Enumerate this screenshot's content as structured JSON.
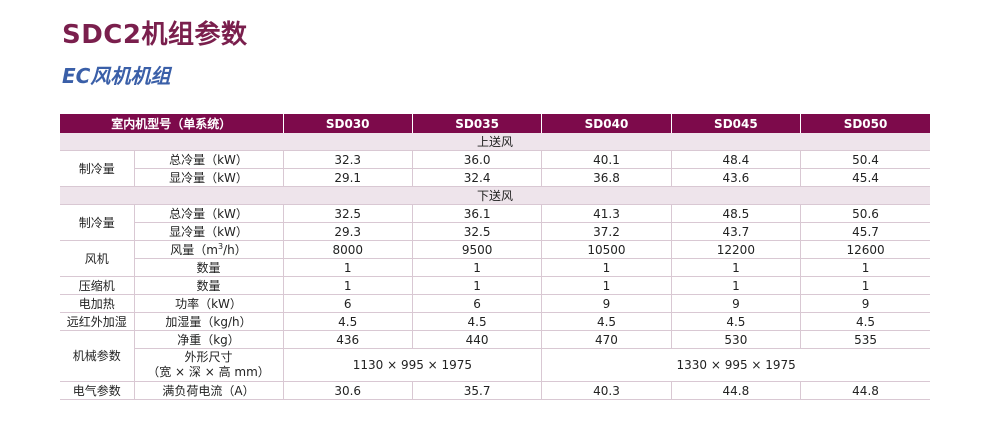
{
  "title": "SDC2机组参数",
  "subtitle": "EC风机机组",
  "table": {
    "header_label": "室内机型号（单系统）",
    "models": [
      "SD030",
      "SD035",
      "SD040",
      "SD045",
      "SD050"
    ],
    "sections": {
      "up": "上送风",
      "down": "下送风"
    },
    "up": {
      "cooling_category": "制冷量",
      "total_label": "总冷量（kW）",
      "total": [
        "32.3",
        "36.0",
        "40.1",
        "48.4",
        "50.4"
      ],
      "sensible_label": "显冷量（kW）",
      "sensible": [
        "29.1",
        "32.4",
        "36.8",
        "43.6",
        "45.4"
      ]
    },
    "down": {
      "cooling_category": "制冷量",
      "total_label": "总冷量（kW）",
      "total": [
        "32.5",
        "36.1",
        "41.3",
        "48.5",
        "50.6"
      ],
      "sensible_label": "显冷量（kW）",
      "sensible": [
        "29.3",
        "32.5",
        "37.2",
        "43.7",
        "45.7"
      ]
    },
    "fan": {
      "category": "风机",
      "airflow_label_a": "风量（m",
      "airflow_label_sup": "3",
      "airflow_label_b": "/h）",
      "airflow": [
        "8000",
        "9500",
        "10500",
        "12200",
        "12600"
      ],
      "qty_label": "数量",
      "qty": [
        "1",
        "1",
        "1",
        "1",
        "1"
      ]
    },
    "compressor": {
      "category": "压缩机",
      "qty_label": "数量",
      "qty": [
        "1",
        "1",
        "1",
        "1",
        "1"
      ]
    },
    "heater": {
      "category": "电加热",
      "power_label": "功率（kW）",
      "power": [
        "6",
        "6",
        "9",
        "9",
        "9"
      ]
    },
    "humidifier": {
      "category": "远红外加湿",
      "label": "加湿量（kg/h）",
      "values": [
        "4.5",
        "4.5",
        "4.5",
        "4.5",
        "4.5"
      ]
    },
    "mechanical": {
      "category": "机械参数",
      "weight_label": "净重（kg）",
      "weight": [
        "436",
        "440",
        "470",
        "530",
        "535"
      ],
      "dim_label_1": "外形尺寸",
      "dim_label_2": "（宽 × 深 × 高 mm）",
      "dim_small": "1130 × 995 × 1975",
      "dim_large": "1330 × 995 × 1975"
    },
    "electrical": {
      "category": "电气参数",
      "label": "满负荷电流（A）",
      "values": [
        "30.6",
        "35.7",
        "40.3",
        "44.8",
        "44.8"
      ]
    }
  }
}
